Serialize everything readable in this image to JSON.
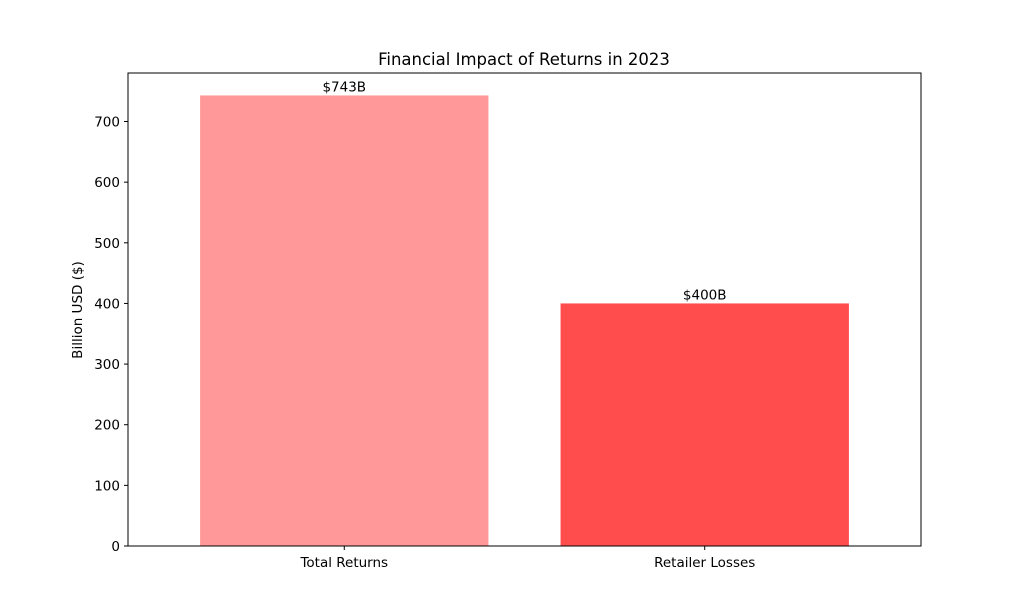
{
  "chart_data": {
    "type": "bar",
    "title": "Financial Impact of Returns in 2023",
    "xlabel": "",
    "ylabel": "Billion USD ($)",
    "categories": [
      "Total Returns",
      "Retailer Losses"
    ],
    "values": [
      743,
      400
    ],
    "data_labels": [
      "$743B",
      "$400B"
    ],
    "colors": [
      "#ff9999",
      "#ff4d4d"
    ],
    "ylim": [
      0,
      780
    ],
    "yticks": [
      0,
      100,
      200,
      300,
      400,
      500,
      600,
      700
    ],
    "grid": false,
    "legend": "none"
  }
}
